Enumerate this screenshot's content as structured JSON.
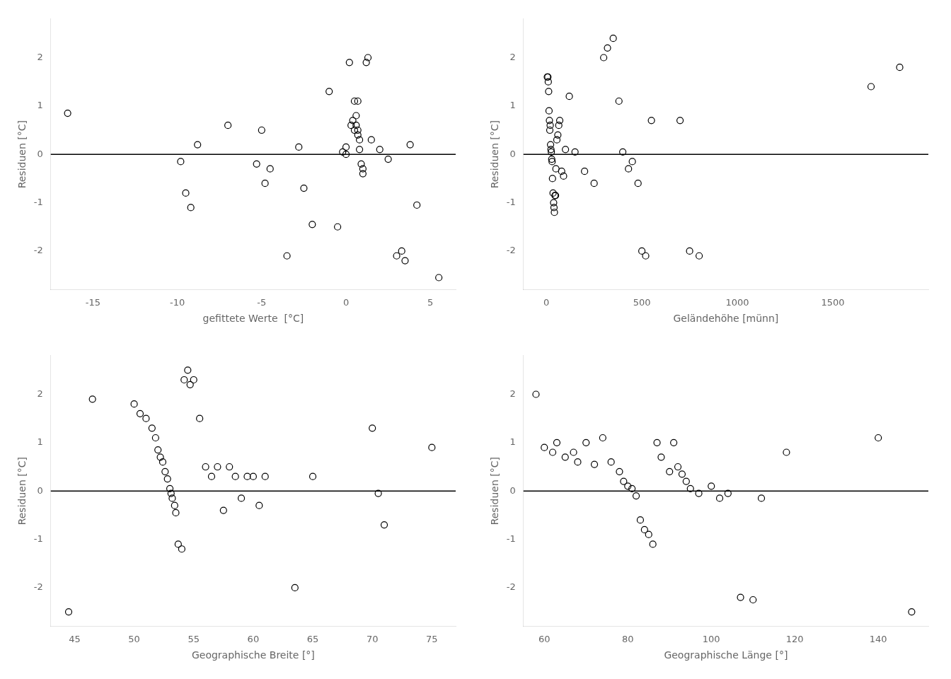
{
  "chart_data": [
    {
      "type": "scatter",
      "xlabel": "gefittete Werte  [°C]",
      "ylabel": "Residuen [°C]",
      "xlim": [
        -17.5,
        6.5
      ],
      "ylim": [
        -2.8,
        2.8
      ],
      "xticks": [
        -15,
        -10,
        -5,
        0,
        5
      ],
      "yticks": [
        -2,
        -1,
        0,
        1,
        2
      ],
      "x": [
        -16.5,
        -9.8,
        -9.5,
        -9.2,
        -8.8,
        -7.0,
        -5.3,
        -5.0,
        -4.8,
        -4.5,
        -3.5,
        -2.8,
        -2.5,
        -2.0,
        -1.0,
        -0.5,
        -0.2,
        0.0,
        0.0,
        0.2,
        0.3,
        0.4,
        0.5,
        0.5,
        0.6,
        0.6,
        0.7,
        0.7,
        0.7,
        0.8,
        0.8,
        0.9,
        1.0,
        1.0,
        1.2,
        1.3,
        1.5,
        2.0,
        2.5,
        3.0,
        3.3,
        3.5,
        3.8,
        4.2,
        5.5
      ],
      "values": [
        0.85,
        -0.15,
        -0.8,
        -1.1,
        0.2,
        0.6,
        -0.2,
        0.5,
        -0.6,
        -0.3,
        -2.1,
        0.15,
        -0.7,
        -1.45,
        1.3,
        -1.5,
        0.05,
        0.0,
        0.15,
        1.9,
        0.6,
        0.7,
        1.1,
        0.5,
        0.6,
        0.8,
        0.4,
        0.5,
        1.1,
        0.1,
        0.3,
        -0.2,
        -0.3,
        -0.4,
        1.9,
        2.0,
        0.3,
        0.1,
        -0.1,
        -2.1,
        -2.0,
        -2.2,
        0.2,
        -1.05,
        -2.55
      ],
      "hline": 0,
      "color": "#000000",
      "marker": "circle",
      "grid": false
    },
    {
      "type": "scatter",
      "xlabel": "Geländehöhe [münn]",
      "ylabel": "Residuen [°C]",
      "xlim": [
        -120,
        2000
      ],
      "ylim": [
        -2.8,
        2.8
      ],
      "xticks": [
        0,
        500,
        1000,
        1500
      ],
      "yticks": [
        -2,
        -1,
        0,
        1,
        2
      ],
      "x": [
        5,
        8,
        10,
        12,
        14,
        16,
        18,
        20,
        22,
        24,
        26,
        28,
        30,
        32,
        35,
        38,
        40,
        42,
        45,
        48,
        50,
        55,
        60,
        65,
        70,
        80,
        90,
        100,
        120,
        150,
        200,
        250,
        300,
        320,
        350,
        380,
        400,
        430,
        450,
        480,
        500,
        520,
        550,
        700,
        750,
        800,
        1700,
        1850
      ],
      "values": [
        1.6,
        1.6,
        1.5,
        1.3,
        0.9,
        0.7,
        0.5,
        0.6,
        0.2,
        0.1,
        0.05,
        -0.1,
        -0.15,
        -0.5,
        -0.8,
        -1.0,
        -1.1,
        -1.2,
        -0.85,
        -0.85,
        -0.3,
        0.3,
        0.4,
        0.6,
        0.7,
        -0.35,
        -0.45,
        0.1,
        1.2,
        0.05,
        -0.35,
        -0.6,
        2.0,
        2.2,
        2.4,
        1.1,
        0.05,
        -0.3,
        -0.15,
        -0.6,
        -2.0,
        -2.1,
        0.7,
        0.7,
        -2.0,
        -2.1,
        1.4,
        1.8
      ],
      "hline": 0,
      "color": "#000000",
      "marker": "circle",
      "grid": false
    },
    {
      "type": "scatter",
      "xlabel": "Geographische Breite [°]",
      "ylabel": "Residuen [°C]",
      "xlim": [
        43,
        77
      ],
      "ylim": [
        -2.8,
        2.8
      ],
      "xticks": [
        45,
        50,
        55,
        60,
        65,
        70,
        75
      ],
      "yticks": [
        -2,
        -1,
        0,
        1,
        2
      ],
      "x": [
        44.5,
        46.5,
        50.0,
        50.5,
        51.0,
        51.5,
        51.8,
        52.0,
        52.2,
        52.4,
        52.6,
        52.8,
        53.0,
        53.1,
        53.2,
        53.4,
        53.5,
        53.7,
        54.0,
        54.2,
        54.5,
        54.7,
        55.0,
        55.5,
        56.0,
        56.5,
        57.0,
        57.5,
        58.0,
        58.5,
        59.0,
        59.5,
        60.0,
        60.5,
        61.0,
        63.5,
        65.0,
        70.0,
        70.5,
        71.0,
        75.0
      ],
      "values": [
        -2.5,
        1.9,
        1.8,
        1.6,
        1.5,
        1.3,
        1.1,
        0.85,
        0.7,
        0.6,
        0.4,
        0.25,
        0.05,
        -0.05,
        -0.15,
        -0.3,
        -0.45,
        -1.1,
        -1.2,
        2.3,
        2.5,
        2.2,
        2.3,
        1.5,
        0.5,
        0.3,
        0.5,
        -0.4,
        0.5,
        0.3,
        -0.15,
        0.3,
        0.3,
        -0.3,
        0.3,
        -2.0,
        0.3,
        1.3,
        -0.05,
        -0.7,
        0.9
      ],
      "hline": 0,
      "color": "#000000",
      "marker": "circle",
      "grid": false
    },
    {
      "type": "scatter",
      "xlabel": "Geographische Länge [°]",
      "ylabel": "Residuen [°C]",
      "xlim": [
        55,
        152
      ],
      "ylim": [
        -2.8,
        2.8
      ],
      "xticks": [
        60,
        80,
        100,
        120,
        140
      ],
      "yticks": [
        -2,
        -1,
        0,
        1,
        2
      ],
      "x": [
        58,
        60,
        62,
        63,
        65,
        67,
        68,
        70,
        72,
        74,
        76,
        78,
        79,
        80,
        81,
        82,
        83,
        84,
        85,
        86,
        87,
        88,
        90,
        91,
        92,
        93,
        94,
        95,
        97,
        100,
        102,
        104,
        107,
        110,
        112,
        118,
        140,
        148
      ],
      "values": [
        2.0,
        0.9,
        0.8,
        1.0,
        0.7,
        0.8,
        0.6,
        1.0,
        0.55,
        1.1,
        0.6,
        0.4,
        0.2,
        0.1,
        0.05,
        -0.1,
        -0.6,
        -0.8,
        -0.9,
        -1.1,
        1.0,
        0.7,
        0.4,
        1.0,
        0.5,
        0.35,
        0.2,
        0.05,
        -0.05,
        0.1,
        -0.15,
        -0.05,
        -2.2,
        -2.25,
        -0.15,
        0.8,
        1.1,
        -2.5
      ],
      "hline": 0,
      "color": "#000000",
      "marker": "circle",
      "grid": false
    }
  ]
}
